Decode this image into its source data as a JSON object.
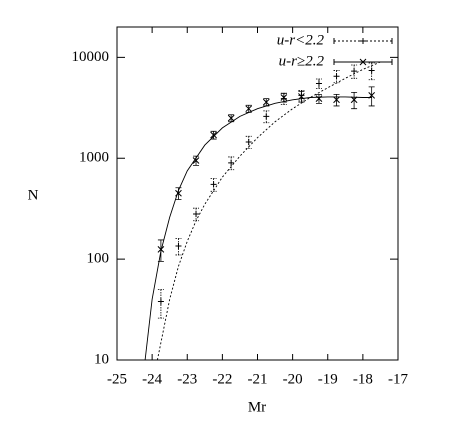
{
  "chart_data": {
    "type": "scatter",
    "x_label": "Mr",
    "y_label": "N",
    "log_y": true,
    "xlim": [
      -25,
      -17
    ],
    "ylim": [
      10,
      20000
    ],
    "xticks": [
      -25,
      -24,
      -23,
      -22,
      -21,
      -20,
      -19,
      -18,
      -17
    ],
    "yticks": [
      10,
      100,
      1000,
      10000
    ],
    "legend": "top-right",
    "series": [
      {
        "name": "u-r<2.2",
        "color": "#000000",
        "marker": "plus",
        "line_style": "dotted",
        "x": [
          -23.75,
          -23.25,
          -22.75,
          -22.25,
          -21.75,
          -21.25,
          -20.75,
          -20.25,
          -19.75,
          -19.25,
          -18.75,
          -18.25,
          -17.75
        ],
        "values": [
          38,
          135,
          280,
          550,
          900,
          1450,
          2600,
          3900,
          4200,
          5500,
          6500,
          7300,
          7400
        ],
        "errors": [
          12,
          25,
          40,
          80,
          130,
          200,
          350,
          500,
          500,
          600,
          900,
          1100,
          1400
        ],
        "fit": {
          "x": [
            -23.85,
            -23.5,
            -23.25,
            -23,
            -22.75,
            -22.5,
            -22,
            -21.5,
            -21,
            -20.5,
            -20,
            -19.5,
            -19,
            -18.5,
            -18,
            -17.5
          ],
          "values": [
            10,
            40,
            85,
            150,
            240,
            350,
            650,
            1050,
            1600,
            2300,
            3100,
            4000,
            5000,
            6200,
            7600,
            9000
          ]
        }
      },
      {
        "name": "u-r≥2.2",
        "color": "#000000",
        "marker": "cross",
        "line_style": "solid",
        "x": [
          -23.75,
          -23.25,
          -22.75,
          -22.25,
          -21.75,
          -21.25,
          -20.75,
          -20.25,
          -19.75,
          -19.25,
          -18.75,
          -18.25,
          -17.75
        ],
        "values": [
          125,
          450,
          950,
          1700,
          2500,
          3100,
          3600,
          4000,
          4100,
          3900,
          3800,
          3800,
          4200
        ],
        "errors": [
          30,
          60,
          100,
          150,
          200,
          250,
          300,
          400,
          500,
          400,
          500,
          700,
          900
        ],
        "fit": {
          "x": [
            -24.2,
            -24,
            -23.75,
            -23.5,
            -23.25,
            -23,
            -22.5,
            -22,
            -21.5,
            -21,
            -20.5,
            -20,
            -19.5,
            -19,
            -18.5,
            -18,
            -17.75
          ],
          "values": [
            10,
            40,
            120,
            260,
            480,
            750,
            1350,
            2000,
            2600,
            3100,
            3500,
            3800,
            4000,
            4050,
            4050,
            4000,
            4000
          ]
        }
      }
    ]
  }
}
